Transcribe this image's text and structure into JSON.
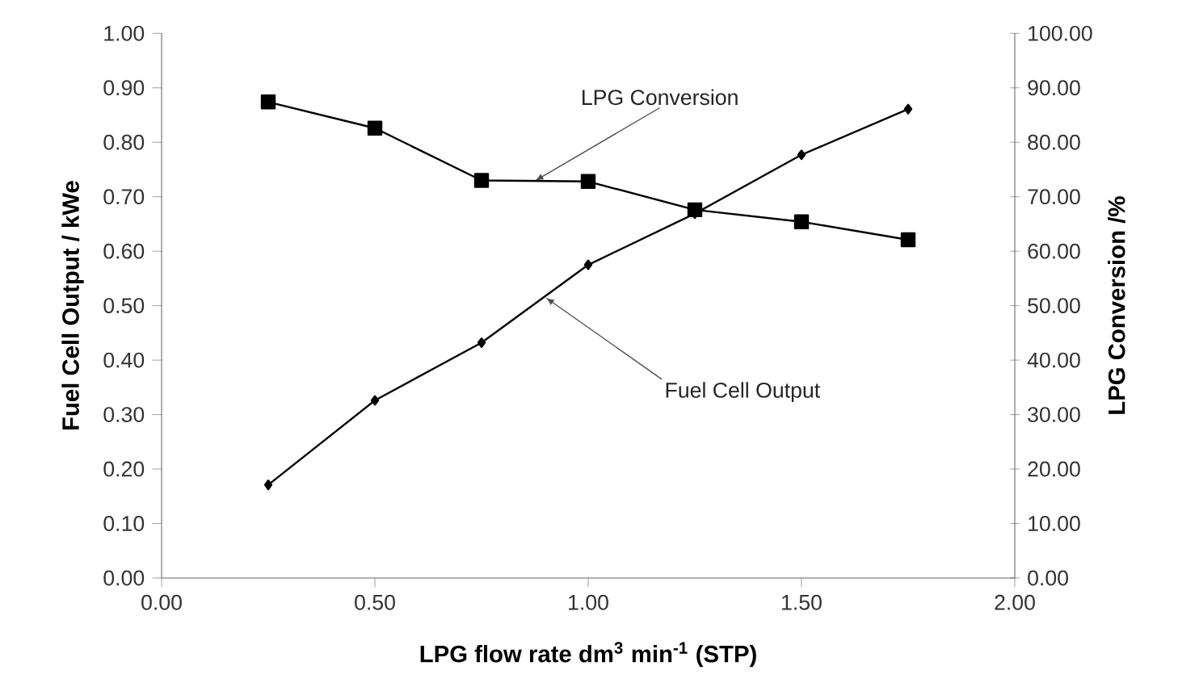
{
  "chart_data": {
    "type": "line",
    "xlabel": "LPG flow rate dm$^{3}$ min$^{-1}$ (STP)",
    "ylabel": "Fuel Cell Output / kWe",
    "y2label": "LPG Conversion /%",
    "x": [
      0.25,
      0.5,
      0.75,
      1.0,
      1.25,
      1.5,
      1.75
    ],
    "annotations": [
      {
        "text": "Fuel Cell Output",
        "x": 0.9,
        "y": 0.515
      },
      {
        "text": "LPG Conversion",
        "x": 0.875,
        "y": 0.729
      }
    ],
    "series": [
      {
        "color": "#000000",
        "marker": "diamond",
        "values": [
          0.171,
          0.326,
          0.432,
          0.575,
          0.669,
          0.777,
          0.861
        ]
      },
      {
        "color": "#000000",
        "marker": "square",
        "axis": "y2",
        "values": [
          87.4,
          82.6,
          73.0,
          72.8,
          67.6,
          65.4,
          62.1
        ]
      }
    ],
    "xlim": [
      0,
      2
    ],
    "xticks": [
      {
        "value": 0,
        "label": "0.00"
      },
      {
        "value": 0.5,
        "label": "0.50"
      },
      {
        "value": 1,
        "label": "1.00"
      },
      {
        "value": 1.5,
        "label": "1.50"
      },
      {
        "value": 2,
        "label": "2.00"
      }
    ],
    "ylim": [
      0,
      1
    ],
    "yticks": [
      {
        "value": 0,
        "label": "0.00"
      },
      {
        "value": 0.1,
        "label": "0.10"
      },
      {
        "value": 0.2,
        "label": "0.20"
      },
      {
        "value": 0.3,
        "label": "0.30"
      },
      {
        "value": 0.4,
        "label": "0.40"
      },
      {
        "value": 0.5,
        "label": "0.50"
      },
      {
        "value": 0.6,
        "label": "0.60"
      },
      {
        "value": 0.7,
        "label": "0.70"
      },
      {
        "value": 0.8,
        "label": "0.80"
      },
      {
        "value": 0.9,
        "label": "0.90"
      },
      {
        "value": 1,
        "label": "1.00"
      }
    ],
    "y2lim": [
      0,
      100
    ],
    "y2ticks": [
      {
        "value": 0,
        "label": "0.00"
      },
      {
        "value": 10,
        "label": "10.00"
      },
      {
        "value": 20,
        "label": "20.00"
      },
      {
        "value": 30,
        "label": "30.00"
      },
      {
        "value": 40,
        "label": "40.00"
      },
      {
        "value": 50,
        "label": "50.00"
      },
      {
        "value": 60,
        "label": "60.00"
      },
      {
        "value": 70,
        "label": "70.00"
      },
      {
        "value": 80,
        "label": "80.00"
      },
      {
        "value": 90,
        "label": "90.00"
      },
      {
        "value": 100,
        "label": "100.00"
      }
    ],
    "grid": false,
    "line_style": "solid"
  }
}
